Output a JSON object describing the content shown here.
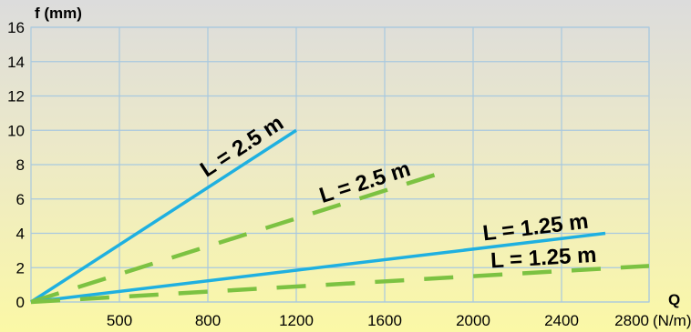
{
  "chart_data": {
    "type": "line",
    "ylabel": "f (mm)",
    "xlabel": "Q",
    "xunit": "(N/m)",
    "x_ticks": [
      "500",
      "800",
      "1200",
      "1600",
      "2000",
      "2400",
      "2800"
    ],
    "y_ticks": [
      "0",
      "2",
      "4",
      "6",
      "8",
      "10",
      "12",
      "14",
      "16"
    ],
    "ylim": [
      0,
      16
    ],
    "grid": true,
    "series": [
      {
        "name": "L = 2.5 m",
        "style": "solid",
        "color": "#1fb0e0",
        "points": [
          [
            0,
            0
          ],
          [
            1200,
            10
          ]
        ]
      },
      {
        "name": "L = 2.5 m",
        "style": "dashed",
        "color": "#7cc242",
        "points": [
          [
            0,
            0
          ],
          [
            1900,
            7.7
          ]
        ]
      },
      {
        "name": "L = 1.25 m",
        "style": "solid",
        "color": "#1fb0e0",
        "points": [
          [
            0,
            0
          ],
          [
            2600,
            4.0
          ]
        ]
      },
      {
        "name": "L = 1.25 m",
        "style": "dashed",
        "color": "#7cc242",
        "points": [
          [
            0,
            0
          ],
          [
            2800,
            2.1
          ]
        ]
      }
    ]
  }
}
